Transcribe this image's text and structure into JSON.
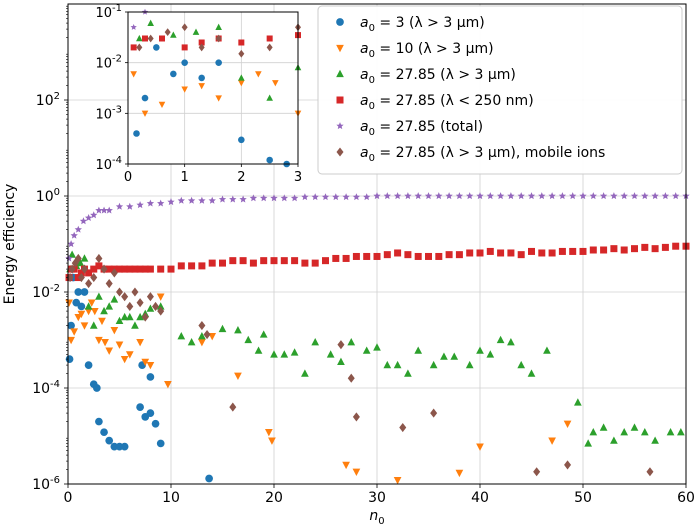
{
  "chart_data": {
    "type": "scatter",
    "xlabel": "n_0",
    "ylabel": "Energy efficiency",
    "xlim": [
      0,
      60
    ],
    "ylim": [
      1e-06,
      10000
    ],
    "yscale": "log",
    "grid": true,
    "legend_position": "top-right",
    "x_ticks": [
      0,
      10,
      20,
      30,
      40,
      50,
      60
    ],
    "y_ticks": [
      {
        "value": 1e-06,
        "label": "10^-6"
      },
      {
        "value": 0.0001,
        "label": "10^-4"
      },
      {
        "value": 0.01,
        "label": "10^-2"
      },
      {
        "value": 1,
        "label": "10^0"
      },
      {
        "value": 100,
        "label": "10^2"
      }
    ],
    "series": [
      {
        "name": "a0 = 3 (λ > 3 μm)",
        "color": "#1f77b4",
        "marker": "circle",
        "points": [
          [
            0.15,
            0.0004
          ],
          [
            0.3,
            0.002
          ],
          [
            0.5,
            0.02
          ],
          [
            0.8,
            0.006
          ],
          [
            1.0,
            0.01
          ],
          [
            1.3,
            0.005
          ],
          [
            1.6,
            0.01
          ],
          [
            2.0,
            0.0003
          ],
          [
            2.5,
            0.00012
          ],
          [
            2.8,
            0.0001
          ],
          [
            3.0,
            2e-05
          ],
          [
            3.5,
            1.2e-05
          ],
          [
            4.0,
            8e-06
          ],
          [
            4.5,
            6e-06
          ],
          [
            5.0,
            6e-06
          ],
          [
            5.5,
            6e-06
          ],
          [
            7.0,
            4e-05
          ],
          [
            7.5,
            2.5e-05
          ],
          [
            8.0,
            3e-05
          ],
          [
            8.5,
            1.8e-05
          ],
          [
            9.0,
            7e-06
          ],
          [
            13.7,
            1.3e-06
          ],
          [
            7.2,
            0.0003
          ],
          [
            8.0,
            0.00017
          ]
        ]
      },
      {
        "name": "a0 = 10 (λ > 3 μm)",
        "color": "#ff7f0e",
        "marker": "triangle-down",
        "points": [
          [
            0.1,
            0.006
          ],
          [
            0.3,
            0.001
          ],
          [
            0.6,
            0.0015
          ],
          [
            1.0,
            0.003
          ],
          [
            1.3,
            0.0035
          ],
          [
            1.6,
            0.002
          ],
          [
            2.0,
            0.004
          ],
          [
            2.3,
            0.006
          ],
          [
            2.6,
            0.004
          ],
          [
            3.0,
            0.001
          ],
          [
            3.3,
            0.0025
          ],
          [
            3.6,
            0.0009
          ],
          [
            4.0,
            0.0006
          ],
          [
            4.5,
            0.0016
          ],
          [
            5.0,
            0.0008
          ],
          [
            5.5,
            0.0004
          ],
          [
            6.0,
            0.0005
          ],
          [
            7.0,
            0.0009
          ],
          [
            7.5,
            0.00035
          ],
          [
            8.0,
            0.0003
          ],
          [
            9.0,
            0.008
          ],
          [
            9.7,
            0.00012
          ],
          [
            13.0,
            0.0009
          ],
          [
            14.0,
            0.0012
          ],
          [
            16.5,
            0.00018
          ],
          [
            19.5,
            1.2e-05
          ],
          [
            19.8,
            8e-06
          ],
          [
            27.0,
            2.5e-06
          ],
          [
            28.0,
            1.8e-06
          ],
          [
            32.0,
            1.2e-06
          ],
          [
            38.0,
            1.7e-06
          ],
          [
            40.0,
            6e-06
          ],
          [
            47.0,
            8e-06
          ],
          [
            48.5,
            1.8e-05
          ]
        ]
      },
      {
        "name": "a0 = 27.85 (λ > 3 μm)",
        "color": "#2ca02c",
        "marker": "triangle-up",
        "points": [
          [
            0.2,
            0.03
          ],
          [
            0.4,
            0.06
          ],
          [
            0.8,
            0.035
          ],
          [
            1.2,
            0.04
          ],
          [
            1.6,
            0.05
          ],
          [
            2.0,
            0.005
          ],
          [
            2.5,
            0.002
          ],
          [
            3.0,
            0.008
          ],
          [
            3.5,
            0.004
          ],
          [
            4.0,
            0.005
          ],
          [
            4.5,
            0.007
          ],
          [
            5.0,
            0.0025
          ],
          [
            5.5,
            0.003
          ],
          [
            6.0,
            0.003
          ],
          [
            6.5,
            0.002
          ],
          [
            7.0,
            0.003
          ],
          [
            7.5,
            0.0035
          ],
          [
            8.0,
            0.0045
          ],
          [
            9.0,
            0.005
          ],
          [
            11.0,
            0.0012
          ],
          [
            12.0,
            0.0009
          ],
          [
            13.0,
            0.0012
          ],
          [
            15.0,
            0.0017
          ],
          [
            16.5,
            0.0016
          ],
          [
            17.5,
            0.001
          ],
          [
            18.5,
            0.0006
          ],
          [
            19.0,
            0.0013
          ],
          [
            20.0,
            0.0005
          ],
          [
            21.0,
            0.0005
          ],
          [
            22.0,
            0.00055
          ],
          [
            23.0,
            0.0002
          ],
          [
            24.0,
            0.0009
          ],
          [
            25.5,
            0.0005
          ],
          [
            26.5,
            0.00035
          ],
          [
            27.5,
            0.0009
          ],
          [
            29.0,
            0.0006
          ],
          [
            30.0,
            0.0007
          ],
          [
            31.0,
            0.0003
          ],
          [
            32.0,
            0.0003
          ],
          [
            33.0,
            0.0002
          ],
          [
            34.0,
            0.0006
          ],
          [
            35.5,
            0.0003
          ],
          [
            36.5,
            0.00045
          ],
          [
            37.5,
            0.00045
          ],
          [
            39.0,
            0.0003
          ],
          [
            40.0,
            0.0006
          ],
          [
            41.0,
            0.0005
          ],
          [
            42.0,
            0.001
          ],
          [
            43.0,
            0.0009
          ],
          [
            44.0,
            0.0003
          ],
          [
            45.0,
            0.0002
          ],
          [
            46.5,
            0.0006
          ],
          [
            49.5,
            5e-05
          ],
          [
            50.5,
            7e-06
          ],
          [
            51.0,
            1.2e-05
          ],
          [
            52.0,
            1.5e-05
          ],
          [
            53.0,
            8e-06
          ],
          [
            54.0,
            1.2e-05
          ],
          [
            55.0,
            1.5e-05
          ],
          [
            56.0,
            1.2e-05
          ],
          [
            57.0,
            8e-06
          ],
          [
            58.5,
            1.2e-05
          ],
          [
            59.5,
            1.2e-05
          ]
        ]
      },
      {
        "name": "a0 = 27.85 (λ < 250 nm)",
        "color": "#d62728",
        "marker": "square",
        "points": [
          [
            0.1,
            0.02
          ],
          [
            0.3,
            0.03
          ],
          [
            0.6,
            0.03
          ],
          [
            1.0,
            0.02
          ],
          [
            1.3,
            0.025
          ],
          [
            1.6,
            0.03
          ],
          [
            2.0,
            0.025
          ],
          [
            2.5,
            0.03
          ],
          [
            3.0,
            0.035
          ],
          [
            3.5,
            0.03
          ],
          [
            4.0,
            0.03
          ],
          [
            4.5,
            0.03
          ],
          [
            5.0,
            0.03
          ],
          [
            5.5,
            0.03
          ],
          [
            6.0,
            0.03
          ],
          [
            6.5,
            0.03
          ],
          [
            7.0,
            0.03
          ],
          [
            7.5,
            0.03
          ],
          [
            8.0,
            0.03
          ],
          [
            9.0,
            0.03
          ],
          [
            10.0,
            0.03
          ],
          [
            11.0,
            0.035
          ],
          [
            12.0,
            0.035
          ],
          [
            13.0,
            0.035
          ],
          [
            14.0,
            0.04
          ],
          [
            15.0,
            0.04
          ],
          [
            16.0,
            0.045
          ],
          [
            17.0,
            0.045
          ],
          [
            18.0,
            0.04
          ],
          [
            19.0,
            0.045
          ],
          [
            20.0,
            0.045
          ],
          [
            21.0,
            0.045
          ],
          [
            22.0,
            0.045
          ],
          [
            23.0,
            0.04
          ],
          [
            24.0,
            0.04
          ],
          [
            25.0,
            0.045
          ],
          [
            26.0,
            0.05
          ],
          [
            27.0,
            0.05
          ],
          [
            28.0,
            0.055
          ],
          [
            29.0,
            0.055
          ],
          [
            30.0,
            0.055
          ],
          [
            31.0,
            0.06
          ],
          [
            32.0,
            0.065
          ],
          [
            33.0,
            0.06
          ],
          [
            34.0,
            0.055
          ],
          [
            35.0,
            0.055
          ],
          [
            36.0,
            0.055
          ],
          [
            37.0,
            0.06
          ],
          [
            38.0,
            0.06
          ],
          [
            39.0,
            0.065
          ],
          [
            40.0,
            0.065
          ],
          [
            41.0,
            0.07
          ],
          [
            42.0,
            0.065
          ],
          [
            43.0,
            0.065
          ],
          [
            44.0,
            0.06
          ],
          [
            45.0,
            0.07
          ],
          [
            46.0,
            0.065
          ],
          [
            47.0,
            0.065
          ],
          [
            48.0,
            0.07
          ],
          [
            49.0,
            0.07
          ],
          [
            50.0,
            0.07
          ],
          [
            51.0,
            0.075
          ],
          [
            52.0,
            0.075
          ],
          [
            53.0,
            0.08
          ],
          [
            54.0,
            0.075
          ],
          [
            55.0,
            0.08
          ],
          [
            56.0,
            0.085
          ],
          [
            57.0,
            0.08
          ],
          [
            58.0,
            0.085
          ],
          [
            59.0,
            0.09
          ],
          [
            60.0,
            0.09
          ]
        ]
      },
      {
        "name": "a0 = 27.85 (total)",
        "color": "#9467bd",
        "marker": "star",
        "points": [
          [
            0.1,
            0.05
          ],
          [
            0.3,
            0.1
          ],
          [
            0.6,
            0.15
          ],
          [
            1.0,
            0.2
          ],
          [
            1.5,
            0.3
          ],
          [
            2.0,
            0.35
          ],
          [
            2.5,
            0.4
          ],
          [
            3.0,
            0.5
          ],
          [
            3.5,
            0.5
          ],
          [
            4.0,
            0.5
          ],
          [
            5.0,
            0.6
          ],
          [
            6.0,
            0.6
          ],
          [
            7.0,
            0.65
          ],
          [
            8.0,
            0.7
          ],
          [
            9.0,
            0.7
          ],
          [
            10.0,
            0.75
          ],
          [
            11.0,
            0.8
          ],
          [
            12.0,
            0.8
          ],
          [
            13.0,
            0.8
          ],
          [
            14.0,
            0.8
          ],
          [
            15.0,
            0.85
          ],
          [
            16.0,
            0.85
          ],
          [
            17.0,
            0.85
          ],
          [
            18.0,
            0.9
          ],
          [
            19.0,
            0.9
          ],
          [
            20.0,
            0.9
          ],
          [
            21.0,
            0.9
          ],
          [
            22.0,
            0.9
          ],
          [
            23.0,
            0.95
          ],
          [
            24.0,
            0.95
          ],
          [
            25.0,
            0.95
          ],
          [
            26.0,
            0.95
          ],
          [
            27.0,
            0.95
          ],
          [
            28.0,
            0.95
          ],
          [
            29.0,
            0.95
          ],
          [
            30.0,
            1.0
          ],
          [
            31.0,
            1.0
          ],
          [
            32.0,
            1.0
          ],
          [
            33.0,
            1.0
          ],
          [
            34.0,
            1.0
          ],
          [
            35.0,
            1.0
          ],
          [
            36.0,
            1.0
          ],
          [
            37.0,
            1.0
          ],
          [
            38.0,
            1.0
          ],
          [
            39.0,
            1.0
          ],
          [
            40.0,
            1.0
          ],
          [
            41.0,
            1.0
          ],
          [
            42.0,
            1.0
          ],
          [
            43.0,
            1.0
          ],
          [
            44.0,
            1.0
          ],
          [
            45.0,
            1.0
          ],
          [
            46.0,
            1.0
          ],
          [
            47.0,
            1.0
          ],
          [
            48.0,
            1.0
          ],
          [
            49.0,
            1.0
          ],
          [
            50.0,
            1.0
          ],
          [
            51.0,
            1.0
          ],
          [
            52.0,
            1.0
          ],
          [
            53.0,
            1.0
          ],
          [
            54.0,
            1.0
          ],
          [
            55.0,
            1.0
          ],
          [
            56.0,
            1.0
          ],
          [
            57.0,
            1.0
          ],
          [
            58.0,
            1.0
          ],
          [
            59.0,
            1.0
          ],
          [
            60.0,
            1.0
          ]
        ]
      },
      {
        "name": "a0 = 27.85 (λ > 3 μm), mobile ions",
        "color": "#8c564b",
        "marker": "diamond",
        "points": [
          [
            0.2,
            0.02
          ],
          [
            0.4,
            0.03
          ],
          [
            0.7,
            0.04
          ],
          [
            1.0,
            0.05
          ],
          [
            1.3,
            0.02
          ],
          [
            1.6,
            0.03
          ],
          [
            2.0,
            0.015
          ],
          [
            2.5,
            0.02
          ],
          [
            3.0,
            0.05
          ],
          [
            3.5,
            0.03
          ],
          [
            4.0,
            0.015
          ],
          [
            4.5,
            0.025
          ],
          [
            5.0,
            0.01
          ],
          [
            5.5,
            0.008
          ],
          [
            6.0,
            0.005
          ],
          [
            6.5,
            0.01
          ],
          [
            7.0,
            0.006
          ],
          [
            7.5,
            0.003
          ],
          [
            8.0,
            0.008
          ],
          [
            8.5,
            0.005
          ],
          [
            9.0,
            0.004
          ],
          [
            13.0,
            0.002
          ],
          [
            13.5,
            0.0013
          ],
          [
            16.0,
            4e-05
          ],
          [
            26.5,
            0.0008
          ],
          [
            27.5,
            0.00016
          ],
          [
            28.0,
            2.5e-05
          ],
          [
            32.5,
            1.5e-05
          ],
          [
            35.5,
            3e-05
          ],
          [
            45.5,
            1.8e-06
          ],
          [
            48.5,
            2.5e-06
          ],
          [
            56.5,
            1.8e-06
          ]
        ]
      }
    ],
    "inset": {
      "xlim": [
        0,
        3
      ],
      "ylim": [
        0.0001,
        0.1
      ],
      "yscale": "log",
      "x_ticks": [
        0,
        1,
        2,
        3
      ],
      "y_ticks": [
        {
          "value": 0.0001,
          "label": "10^-4"
        },
        {
          "value": 0.001,
          "label": "10^-3"
        },
        {
          "value": 0.01,
          "label": "10^-2"
        },
        {
          "value": 0.1,
          "label": "10^-1"
        }
      ]
    }
  }
}
